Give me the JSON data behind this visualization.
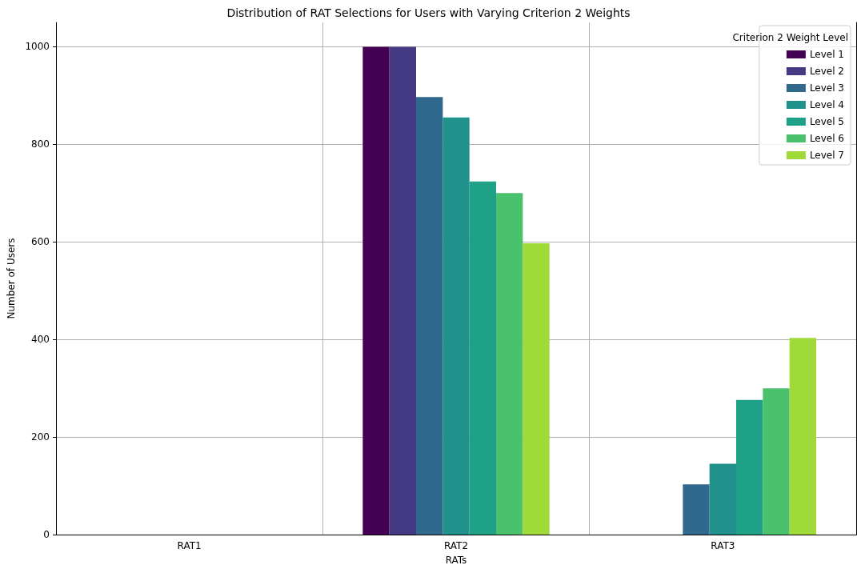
{
  "chart_data": {
    "type": "bar",
    "title": "Distribution of RAT Selections for Users with Varying Criterion 2 Weights",
    "xlabel": "RATs",
    "ylabel": "Number of Users",
    "legend_title": "Criterion 2 Weight Level",
    "categories": [
      "RAT1",
      "RAT2",
      "RAT3"
    ],
    "series": [
      {
        "name": "Level 1",
        "color": "#440154",
        "values": [
          0,
          1000,
          0
        ]
      },
      {
        "name": "Level 2",
        "color": "#443983",
        "values": [
          0,
          1000,
          0
        ]
      },
      {
        "name": "Level 3",
        "color": "#31688e",
        "values": [
          0,
          897,
          103
        ]
      },
      {
        "name": "Level 4",
        "color": "#21918c",
        "values": [
          0,
          855,
          145
        ]
      },
      {
        "name": "Level 5",
        "color": "#1fa187",
        "values": [
          0,
          724,
          276
        ]
      },
      {
        "name": "Level 6",
        "color": "#4ac16d",
        "values": [
          0,
          700,
          300
        ]
      },
      {
        "name": "Level 7",
        "color": "#a0da39",
        "values": [
          0,
          597,
          403
        ]
      }
    ],
    "ylim": [
      0,
      1050
    ],
    "yticks": [
      0,
      200,
      400,
      600,
      800,
      1000
    ],
    "grid": true,
    "legend": "top right"
  }
}
